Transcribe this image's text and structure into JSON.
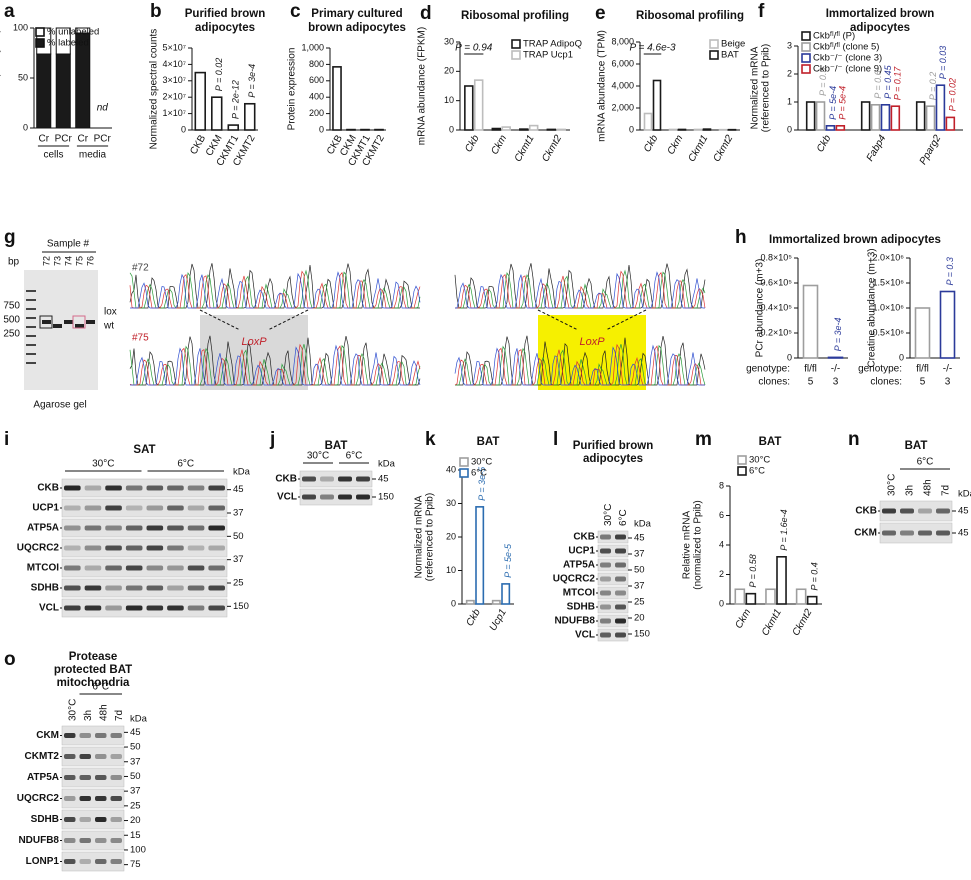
{
  "chart_data": [
    {
      "panel": "a",
      "type": "bar",
      "stacked": true,
      "bar_style": "filled",
      "ylabel": [
        "% labelled (methyl-d₃)"
      ],
      "categories": [
        "Cr",
        "PCr",
        "Cr",
        "PCr"
      ],
      "groups": [
        "cells",
        "media"
      ],
      "series": [
        {
          "name": "% labeled",
          "color": "#1a1a1a",
          "values": [
            74,
            74,
            95,
            null
          ]
        },
        {
          "name": "% unlabeled",
          "color": "#ffffff",
          "values": [
            26,
            26,
            5,
            null
          ]
        }
      ],
      "annotation": "nd",
      "ylim": [
        0,
        100
      ],
      "yticks": [
        0,
        50,
        100
      ],
      "legend": true
    },
    {
      "panel": "b",
      "type": "bar",
      "bar_style": "outline",
      "title": [
        "Purified brown",
        "adipocytes"
      ],
      "ylabel": [
        "Normalized spectral counts"
      ],
      "categories": [
        "CKB",
        "CKM",
        "CKMT1",
        "CKMT2"
      ],
      "series": [
        {
          "color": "#1a1a1a",
          "values": [
            35000000,
            20000000,
            3000000,
            16000000
          ],
          "p_labels": [
            null,
            "P = 0.02",
            "P = 2e-12",
            "P = 3e-4"
          ]
        }
      ],
      "ylim": [
        0,
        50000000
      ],
      "yticks": [
        0,
        {
          "value": 10000000,
          "label": "1×10⁷"
        },
        {
          "value": 20000000,
          "label": "2×10⁷"
        },
        {
          "value": 30000000,
          "label": "3×10⁷"
        },
        {
          "value": 40000000,
          "label": "4×10⁷"
        },
        {
          "value": 50000000,
          "label": "5×10⁷"
        }
      ]
    },
    {
      "panel": "c",
      "type": "bar",
      "bar_style": "outline",
      "title": [
        "Primary cultured",
        "brown adipocytes"
      ],
      "ylabel": [
        "Protein expression"
      ],
      "categories": [
        "CKB",
        "CKM",
        "CKMT1",
        "CKMT2"
      ],
      "series": [
        {
          "color": "#1a1a1a",
          "values": [
            770,
            5,
            5,
            5
          ]
        }
      ],
      "ylim": [
        0,
        1000
      ],
      "yticks": [
        0,
        200,
        400,
        600,
        800,
        {
          "value": 1000,
          "label": "1,000"
        }
      ]
    },
    {
      "panel": "d",
      "type": "bar",
      "bar_style": "outline",
      "title": [
        "Ribosomal profiling"
      ],
      "ylabel": [
        "mRNA abundance (FPKM)"
      ],
      "categories": [
        "Ckb",
        "Ckm",
        "Ckmt1",
        "Ckmt2"
      ],
      "series": [
        {
          "name": "TRAP AdipoQ",
          "color": "#1a1a1a",
          "values": [
            15,
            0.5,
            0.3,
            0.2
          ]
        },
        {
          "name": "TRAP Ucp1",
          "color": "#bdbdbd",
          "values": [
            17,
            1,
            1.5,
            0.2
          ]
        }
      ],
      "annotation": "P = 0.94",
      "ylim": [
        0,
        30
      ],
      "yticks": [
        0,
        10,
        20,
        30
      ],
      "legend": true
    },
    {
      "panel": "e",
      "type": "bar",
      "bar_style": "outline",
      "title": [
        "Ribosomal profiling"
      ],
      "ylabel": [
        "mRNA abundance (TPM)"
      ],
      "categories": [
        "Ckb",
        "Ckm",
        "Ckmt1",
        "Ckmt2"
      ],
      "series": [
        {
          "name": "Beige",
          "color": "#bdbdbd",
          "values": [
            1500,
            50,
            50,
            30
          ]
        },
        {
          "name": "BAT",
          "color": "#1a1a1a",
          "values": [
            4500,
            50,
            80,
            30
          ]
        }
      ],
      "annotation": "P = 4.6e-3",
      "ylim": [
        0,
        8000
      ],
      "yticks": [
        0,
        {
          "value": 2000,
          "label": "2,000"
        },
        {
          "value": 4000,
          "label": "4,000"
        },
        {
          "value": 6000,
          "label": "6,000"
        },
        {
          "value": 8000,
          "label": "8,000"
        }
      ],
      "legend": true
    },
    {
      "panel": "f",
      "type": "bar",
      "bar_style": "outline",
      "title": [
        "Immortalized brown",
        "adipocytes"
      ],
      "ylabel": [
        "Normalized mRNA",
        "(referenced to Ppib)"
      ],
      "categories": [
        "Ckb",
        "Fabp4",
        "Pparg2"
      ],
      "series": [
        {
          "name": "Ckbᶠˡ/ᶠˡ (P)",
          "color": "#1a1a1a",
          "values": [
            1.0,
            1.0,
            1.0
          ]
        },
        {
          "name": "Ckbᶠˡ/ᶠˡ (clone 5)",
          "color": "#9e9e9e",
          "values": [
            1.0,
            0.9,
            0.85
          ],
          "p_labels": [
            "P = 0.9",
            "P = 0.6",
            "P = 0.2"
          ]
        },
        {
          "name": "Ckb⁻/⁻ (clone 3)",
          "color": "#2b3a9a",
          "values": [
            0.15,
            0.9,
            1.6
          ],
          "p_labels": [
            "P = 5e-4",
            "P = 0.45",
            "P = 0.03"
          ]
        },
        {
          "name": "Ckb⁻/⁻ (clone 9)",
          "color": "#c0202a",
          "values": [
            0.15,
            0.85,
            0.45
          ],
          "p_labels": [
            "P = 5e-4",
            "P = 0.17",
            "P = 0.02"
          ]
        }
      ],
      "ylim": [
        0,
        3
      ],
      "yticks": [
        0,
        1,
        2,
        3
      ],
      "legend": true
    },
    {
      "panel": "h",
      "type": "bar",
      "bar_style": "outline",
      "title": [
        "Immortalized brown adipocytes"
      ],
      "ylabel": [
        "PCr abundance (m+3)"
      ],
      "categories": [
        "fl/fl",
        "-/-"
      ],
      "clones": [
        "5",
        "3"
      ],
      "row_labels": [
        "genotype:",
        "clones:"
      ],
      "series": [
        {
          "color": "#9e9e9e",
          "colors": [
            "#9e9e9e",
            "#2b3a9a"
          ],
          "values": [
            58000,
            500
          ],
          "p_labels": [
            null,
            "P = 3e-4"
          ]
        }
      ],
      "ylim": [
        0,
        80000
      ],
      "yticks": [
        0,
        {
          "value": 20000,
          "label": "0.2×10⁵"
        },
        {
          "value": 40000,
          "label": "0.4×10⁵"
        },
        {
          "value": 60000,
          "label": "0.6×10⁵"
        },
        {
          "value": 80000,
          "label": "0.8×10⁵"
        }
      ]
    },
    {
      "type": "bar",
      "bar_style": "outline",
      "ylabel": [
        "Creatine abundance (m+3)"
      ],
      "categories": [
        "fl/fl",
        "-/-"
      ],
      "clones": [
        "5",
        "3"
      ],
      "row_labels": [
        "genotype:",
        "clones:"
      ],
      "series": [
        {
          "color": "#9e9e9e",
          "colors": [
            "#9e9e9e",
            "#2b3a9a"
          ],
          "values": [
            1000000,
            1330000
          ],
          "p_labels": [
            null,
            "P = 0.3"
          ]
        }
      ],
      "ylim": [
        0,
        2000000
      ],
      "yticks": [
        0,
        {
          "value": 500000,
          "label": "0.5×10⁶"
        },
        {
          "value": 1000000,
          "label": "1.0×10⁶"
        },
        {
          "value": 1500000,
          "label": "1.5×10⁶"
        },
        {
          "value": 2000000,
          "label": "2.0×10⁶"
        }
      ]
    },
    {
      "panel": "k",
      "type": "bar",
      "bar_style": "outline",
      "title": [
        "BAT"
      ],
      "ylabel": [
        "Normalized mRNA",
        "(referenced to Ppib)"
      ],
      "categories": [
        "Ckb",
        "Ucp1"
      ],
      "series": [
        {
          "name": "30°C",
          "color": "#9e9e9e",
          "values": [
            1,
            1
          ]
        },
        {
          "name": "6°C",
          "color": "#2b6cb0",
          "values": [
            29,
            6
          ],
          "p_labels": [
            "P = 3e-5",
            "P = 5e-5"
          ]
        }
      ],
      "ylim": [
        0,
        40
      ],
      "yticks": [
        0,
        10,
        20,
        30,
        40
      ],
      "legend": true
    },
    {
      "panel": "m",
      "type": "bar",
      "bar_style": "outline",
      "title": [
        "BAT"
      ],
      "ylabel": [
        "Relative mRNA",
        "(normalized to Ppib)"
      ],
      "categories": [
        "Ckm",
        "Ckmt1",
        "Ckmt2"
      ],
      "series": [
        {
          "name": "30°C",
          "color": "#9e9e9e",
          "values": [
            1,
            1,
            1
          ]
        },
        {
          "name": "6°C",
          "color": "#1a1a1a",
          "values": [
            0.7,
            3.2,
            0.5
          ],
          "p_labels": [
            "P = 0.58",
            "P = 1.6e-4",
            "P = 0.4"
          ]
        }
      ],
      "ylim": [
        0,
        8
      ],
      "yticks": [
        0,
        2,
        4,
        6,
        8
      ],
      "legend": true
    }
  ],
  "gel": {
    "panel": "g",
    "sample_label": "Sample #",
    "lanes": [
      "72",
      "73",
      "74",
      "75",
      "76"
    ],
    "bp_label": "bp",
    "markers": [
      "750",
      "500",
      "250"
    ],
    "bands": [
      "lox",
      "wt"
    ],
    "caption": "Agarose gel"
  },
  "chromatograms": {
    "labels": [
      "#72",
      "#75"
    ],
    "insert": [
      "LoxP",
      "LoxP"
    ]
  },
  "blots": [
    {
      "panel": "i",
      "title": [
        "SAT"
      ],
      "conditions": [
        "30°C",
        "6°C"
      ],
      "rows": [
        "CKB",
        "UCP1",
        "ATP5A",
        "UQCRC2",
        "MTCOI",
        "SDHB",
        "VCL"
      ],
      "kda_label": "kDa",
      "markers": [
        "45",
        "37",
        "50",
        "37",
        "25",
        "150"
      ]
    },
    {
      "panel": "j",
      "title": [
        "BAT"
      ],
      "conditions": [
        "30°C",
        "6°C"
      ],
      "rows": [
        "CKB",
        "VCL"
      ],
      "kda_label": "kDa",
      "markers": [
        "45",
        "150"
      ]
    },
    {
      "panel": "l",
      "title": [
        "Purified brown",
        "adipocytes"
      ],
      "lanes": [
        "30°C",
        "6°C"
      ],
      "rows": [
        "CKB",
        "UCP1",
        "ATP5A",
        "UQCRC2",
        "MTCOI",
        "SDHB",
        "NDUFB8",
        "VCL"
      ],
      "kda_label": "kDa",
      "markers": [
        "45",
        "37",
        "50",
        "37",
        "25",
        "20",
        "150"
      ]
    },
    {
      "panel": "n",
      "title": [
        "BAT"
      ],
      "header": "6°C",
      "lanes": [
        "30°C",
        "3h",
        "48h",
        "7d"
      ],
      "rows": [
        "CKB",
        "CKM"
      ],
      "kda_label": "kDa",
      "markers": [
        "45",
        "45"
      ]
    },
    {
      "panel": "o",
      "title": [
        "Protease",
        "protected BAT",
        "mitochondria"
      ],
      "header": "6°C",
      "lanes": [
        "30°C",
        "3h",
        "48h",
        "7d"
      ],
      "rows": [
        "CKM",
        "CKMT2",
        "ATP5A",
        "UQCRC2",
        "SDHB",
        "NDUFB8",
        "LONP1"
      ],
      "kda_label": "kDa",
      "markers": [
        "45",
        "50",
        "37",
        "50",
        "37",
        "25",
        "20",
        "15",
        "100",
        "75"
      ]
    }
  ]
}
